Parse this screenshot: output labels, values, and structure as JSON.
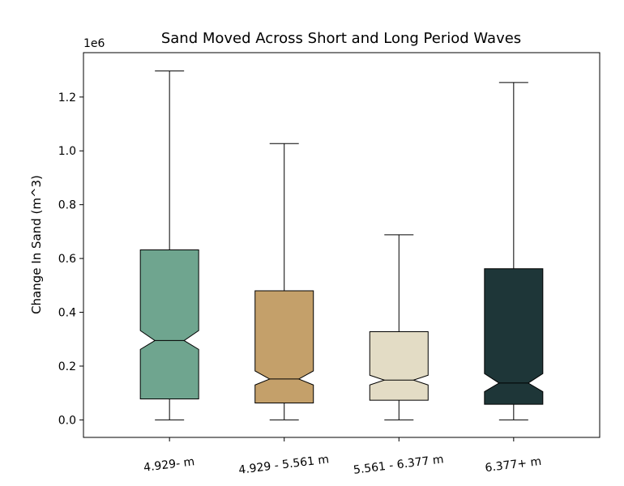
{
  "chart_data": {
    "type": "box",
    "title": "Sand Moved Across Short and Long Period Waves",
    "xlabel": "",
    "ylabel": "Change In Sand (m^3)",
    "y_multiplier_label": "1e6",
    "ylim": [
      -0.065,
      1.365
    ],
    "yticks": [
      0.0,
      0.2,
      0.4,
      0.6,
      0.8,
      1.0,
      1.2
    ],
    "ytick_labels": [
      "0.0",
      "0.2",
      "0.4",
      "0.6",
      "0.8",
      "1.0",
      "1.2"
    ],
    "notched": true,
    "categories": [
      "4.929- m",
      "4.929 - 5.561 m",
      "5.561 - 6.377 m",
      "6.377+ m"
    ],
    "boxes": [
      {
        "category": "4.929- m",
        "whisker_low": 0.0,
        "q1": 0.078,
        "median": 0.295,
        "q3": 0.632,
        "whisker_high": 1.297,
        "notch_low": 0.262,
        "notch_high": 0.332,
        "color": "#6fa58f"
      },
      {
        "category": "4.929 - 5.561 m",
        "whisker_low": 0.0,
        "q1": 0.063,
        "median": 0.152,
        "q3": 0.48,
        "whisker_high": 1.027,
        "notch_low": 0.13,
        "notch_high": 0.182,
        "color": "#c4a06a"
      },
      {
        "category": "5.561 - 6.377 m",
        "whisker_low": 0.0,
        "q1": 0.073,
        "median": 0.148,
        "q3": 0.328,
        "whisker_high": 0.688,
        "notch_low": 0.13,
        "notch_high": 0.166,
        "color": "#e3dcc5"
      },
      {
        "category": "6.377+ m",
        "whisker_low": 0.0,
        "q1": 0.058,
        "median": 0.137,
        "q3": 0.562,
        "whisker_high": 1.254,
        "notch_low": 0.105,
        "notch_high": 0.172,
        "color": "#1e3638"
      }
    ],
    "grid": false,
    "legend": "none"
  }
}
